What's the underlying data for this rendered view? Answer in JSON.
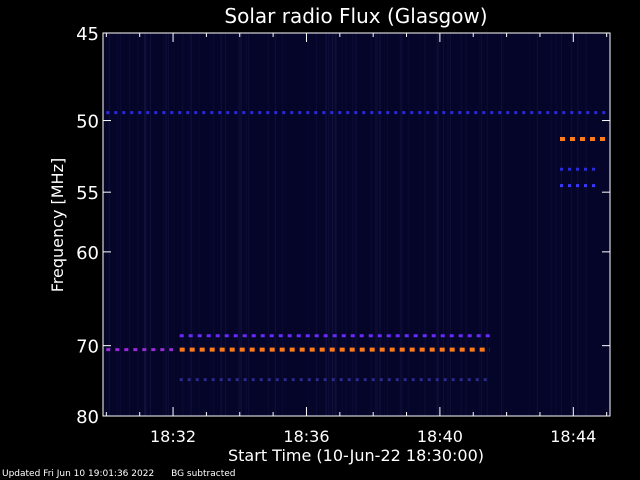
{
  "chart_data": {
    "type": "heatmap",
    "title": "Solar radio Flux (Glasgow)",
    "xlabel": "Start Time (10-Jun-22 18:30:00)",
    "ylabel": "Frequency [MHz]",
    "x_range_minutes_after_1830": [
      -0.1,
      15.1
    ],
    "y_range_mhz": [
      45,
      80
    ],
    "y_scale": "reciprocal",
    "x_ticks": [
      "18:32",
      "18:36",
      "18:40",
      "18:44"
    ],
    "x_tick_minutes": [
      2,
      6,
      10,
      14
    ],
    "y_ticks": [
      "45",
      "50",
      "55",
      "60",
      "70",
      "80"
    ],
    "y_tick_values": [
      45,
      50,
      55,
      60,
      70,
      80
    ],
    "background_color": "#05052a",
    "emission_bands": [
      {
        "freq_mhz": 49.5,
        "start_min": 0.0,
        "end_min": 15.0,
        "color": "#2a2ad8",
        "intensity": "low"
      },
      {
        "freq_mhz": 51.2,
        "start_min": 13.6,
        "end_min": 15.0,
        "color": "#ff7a1a",
        "intensity": "high"
      },
      {
        "freq_mhz": 53.3,
        "start_min": 13.6,
        "end_min": 14.8,
        "color": "#2a2ad8",
        "intensity": "low"
      },
      {
        "freq_mhz": 54.5,
        "start_min": 13.6,
        "end_min": 14.8,
        "color": "#3a3aff",
        "intensity": "low"
      },
      {
        "freq_mhz": 68.8,
        "start_min": 2.2,
        "end_min": 11.5,
        "color": "#6a2aff",
        "intensity": "medium"
      },
      {
        "freq_mhz": 70.5,
        "start_min": 0.0,
        "end_min": 2.0,
        "color": "#9a2ad8",
        "intensity": "medium"
      },
      {
        "freq_mhz": 70.5,
        "start_min": 2.2,
        "end_min": 11.5,
        "color": "#ff7a1a",
        "intensity": "high"
      },
      {
        "freq_mhz": 74.5,
        "start_min": 2.2,
        "end_min": 11.5,
        "color": "#2a2a88",
        "intensity": "low"
      }
    ]
  },
  "footer": {
    "updated": "Updated Fri Jun 10 19:01:36 2022",
    "note": "BG subtracted"
  }
}
